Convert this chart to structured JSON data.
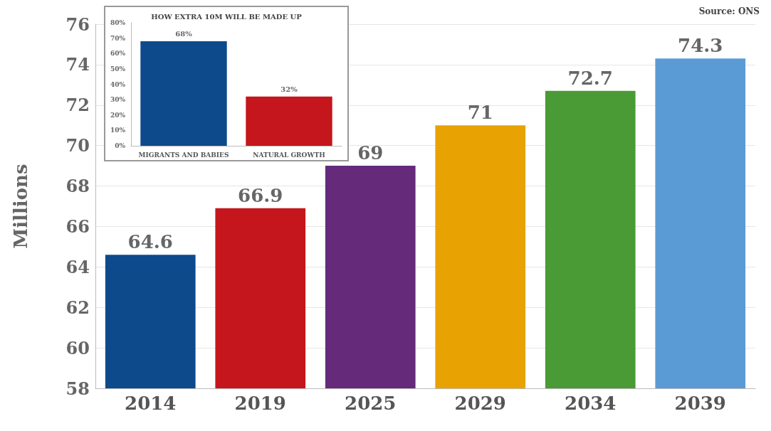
{
  "chart_data": [
    {
      "type": "bar",
      "ylabel": "Millions",
      "categories": [
        "2014",
        "2019",
        "2025",
        "2029",
        "2034",
        "2039"
      ],
      "values": [
        64.6,
        66.9,
        69,
        71,
        72.7,
        74.3
      ],
      "colors": [
        "#0d4a8c",
        "#c4161c",
        "#662a7a",
        "#e8a202",
        "#4a9a35",
        "#5b9bd5"
      ],
      "ylim": [
        58,
        76
      ],
      "yticks": [
        58,
        60,
        62,
        64,
        66,
        68,
        70,
        72,
        74,
        76
      ],
      "grid": "y",
      "data_labels": true,
      "annotations": [
        "Source: ONS"
      ]
    },
    {
      "type": "bar",
      "title": "HOW EXTRA 10M WILL BE MADE UP",
      "categories": [
        "MIGRANTS AND BABIES",
        "NATURAL GROWTH"
      ],
      "values": [
        68,
        32
      ],
      "colors": [
        "#0d4a8c",
        "#c4161c"
      ],
      "value_labels": [
        "68%",
        "32%"
      ],
      "ylim": [
        0,
        80
      ],
      "yticks": [
        {
          "value": 0,
          "label": "0%"
        },
        {
          "value": 10,
          "label": "10%"
        },
        {
          "value": 20,
          "label": "20%"
        },
        {
          "value": 30,
          "label": "30%"
        },
        {
          "value": 40,
          "label": "40%"
        },
        {
          "value": 50,
          "label": "50%"
        },
        {
          "value": 60,
          "label": "60%"
        },
        {
          "value": 70,
          "label": "70%"
        },
        {
          "value": 80,
          "label": "80%"
        }
      ]
    }
  ]
}
